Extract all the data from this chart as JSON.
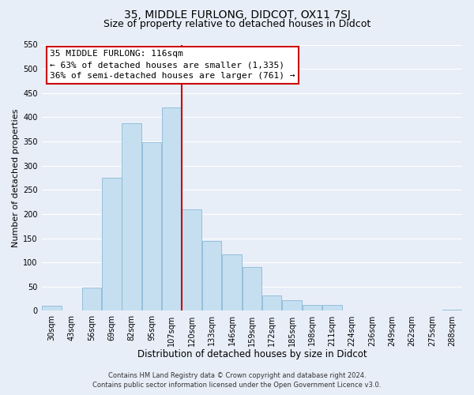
{
  "title": "35, MIDDLE FURLONG, DIDCOT, OX11 7SJ",
  "subtitle": "Size of property relative to detached houses in Didcot",
  "xlabel": "Distribution of detached houses by size in Didcot",
  "ylabel": "Number of detached properties",
  "bar_labels": [
    "30sqm",
    "43sqm",
    "56sqm",
    "69sqm",
    "82sqm",
    "95sqm",
    "107sqm",
    "120sqm",
    "133sqm",
    "146sqm",
    "159sqm",
    "172sqm",
    "185sqm",
    "198sqm",
    "211sqm",
    "224sqm",
    "236sqm",
    "249sqm",
    "262sqm",
    "275sqm",
    "288sqm"
  ],
  "bar_values": [
    11,
    0,
    48,
    275,
    388,
    348,
    420,
    209,
    145,
    117,
    90,
    31,
    22,
    12,
    12,
    0,
    0,
    0,
    0,
    0,
    2
  ],
  "bar_color": "#c5dff0",
  "bar_edge_color": "#8ab8d8",
  "vline_x": 7.5,
  "vline_color": "#cc0000",
  "ylim": [
    0,
    550
  ],
  "yticks": [
    0,
    50,
    100,
    150,
    200,
    250,
    300,
    350,
    400,
    450,
    500,
    550
  ],
  "annotation_title": "35 MIDDLE FURLONG: 116sqm",
  "annotation_line1": "← 63% of detached houses are smaller (1,335)",
  "annotation_line2": "36% of semi-detached houses are larger (761) →",
  "annotation_box_color": "#ffffff",
  "annotation_box_edge": "#cc0000",
  "footer_line1": "Contains HM Land Registry data © Crown copyright and database right 2024.",
  "footer_line2": "Contains public sector information licensed under the Open Government Licence v3.0.",
  "background_color": "#e8eef8",
  "grid_color": "#ffffff",
  "title_fontsize": 10,
  "subtitle_fontsize": 9,
  "xlabel_fontsize": 8.5,
  "ylabel_fontsize": 8,
  "tick_fontsize": 7,
  "footer_fontsize": 6,
  "ann_fontsize": 8
}
